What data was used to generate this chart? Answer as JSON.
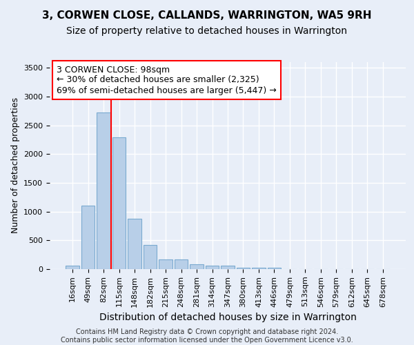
{
  "title": "3, CORWEN CLOSE, CALLANDS, WARRINGTON, WA5 9RH",
  "subtitle": "Size of property relative to detached houses in Warrington",
  "xlabel": "Distribution of detached houses by size in Warrington",
  "ylabel": "Number of detached properties",
  "categories": [
    "16sqm",
    "49sqm",
    "82sqm",
    "115sqm",
    "148sqm",
    "182sqm",
    "215sqm",
    "248sqm",
    "281sqm",
    "314sqm",
    "347sqm",
    "380sqm",
    "413sqm",
    "446sqm",
    "479sqm",
    "513sqm",
    "546sqm",
    "579sqm",
    "612sqm",
    "645sqm",
    "678sqm"
  ],
  "values": [
    55,
    1100,
    2730,
    2290,
    880,
    420,
    170,
    165,
    90,
    60,
    55,
    30,
    30,
    20,
    0,
    0,
    0,
    0,
    0,
    0,
    0
  ],
  "bar_color": "#b8cfe8",
  "bar_edge_color": "#7aaad0",
  "vline_x": 2.5,
  "vline_color": "red",
  "annotation_text": "3 CORWEN CLOSE: 98sqm\n← 30% of detached houses are smaller (2,325)\n69% of semi-detached houses are larger (5,447) →",
  "annotation_box_color": "white",
  "annotation_box_edge_color": "red",
  "ylim": [
    0,
    3600
  ],
  "yticks": [
    0,
    500,
    1000,
    1500,
    2000,
    2500,
    3000,
    3500
  ],
  "background_color": "#e8eef8",
  "grid_color": "white",
  "footer_line1": "Contains HM Land Registry data © Crown copyright and database right 2024.",
  "footer_line2": "Contains public sector information licensed under the Open Government Licence v3.0.",
  "title_fontsize": 11,
  "subtitle_fontsize": 10,
  "xlabel_fontsize": 10,
  "ylabel_fontsize": 9,
  "annotation_fontsize": 9,
  "tick_fontsize": 8,
  "footer_fontsize": 7
}
